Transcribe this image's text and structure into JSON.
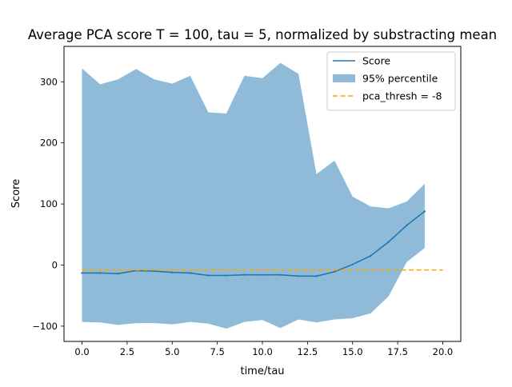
{
  "chart_data": {
    "type": "line",
    "title": "Average PCA score T = 100, tau = 5, normalized by substracting mean",
    "xlabel": "time/tau",
    "ylabel": "Score",
    "xlim": [
      -1.0,
      21.0
    ],
    "ylim": [
      -125,
      358
    ],
    "x_ticks": [
      0.0,
      2.5,
      5.0,
      7.5,
      10.0,
      12.5,
      15.0,
      17.5,
      20.0
    ],
    "x_tick_labels": [
      "0.0",
      "2.5",
      "5.0",
      "7.5",
      "10.0",
      "12.5",
      "15.0",
      "17.5",
      "20.0"
    ],
    "y_ticks": [
      -100,
      0,
      100,
      200,
      300
    ],
    "y_tick_labels": [
      "−100",
      "0",
      "100",
      "200",
      "300"
    ],
    "grid": false,
    "legend_position": "top-right",
    "x": [
      0,
      1,
      2,
      3,
      4,
      5,
      6,
      7,
      8,
      9,
      10,
      11,
      12,
      13,
      14,
      15,
      16,
      17,
      18,
      19
    ],
    "series": [
      {
        "name": "Score",
        "kind": "line",
        "color": "#1f77b4",
        "values": [
          -13,
          -13,
          -14,
          -9,
          -10,
          -12,
          -13,
          -17,
          -17,
          -16,
          -16,
          -16,
          -18,
          -18,
          -11,
          1,
          15,
          38,
          65,
          88
        ]
      },
      {
        "name": "95% percentile",
        "kind": "band",
        "color": "#1f77b4",
        "opacity": 0.5,
        "upper": [
          322,
          296,
          304,
          321,
          304,
          297,
          310,
          250,
          248,
          310,
          306,
          331,
          313,
          149,
          171,
          112,
          96,
          93,
          104,
          133
        ],
        "lower": [
          -93,
          -94,
          -98,
          -95,
          -95,
          -97,
          -93,
          -96,
          -104,
          -93,
          -90,
          -103,
          -89,
          -94,
          -89,
          -87,
          -79,
          -51,
          5,
          28
        ]
      },
      {
        "name": "pca_thresh = -8",
        "kind": "hline",
        "color": "#ffa500",
        "value": -8,
        "x_range": [
          0,
          20
        ]
      }
    ]
  }
}
